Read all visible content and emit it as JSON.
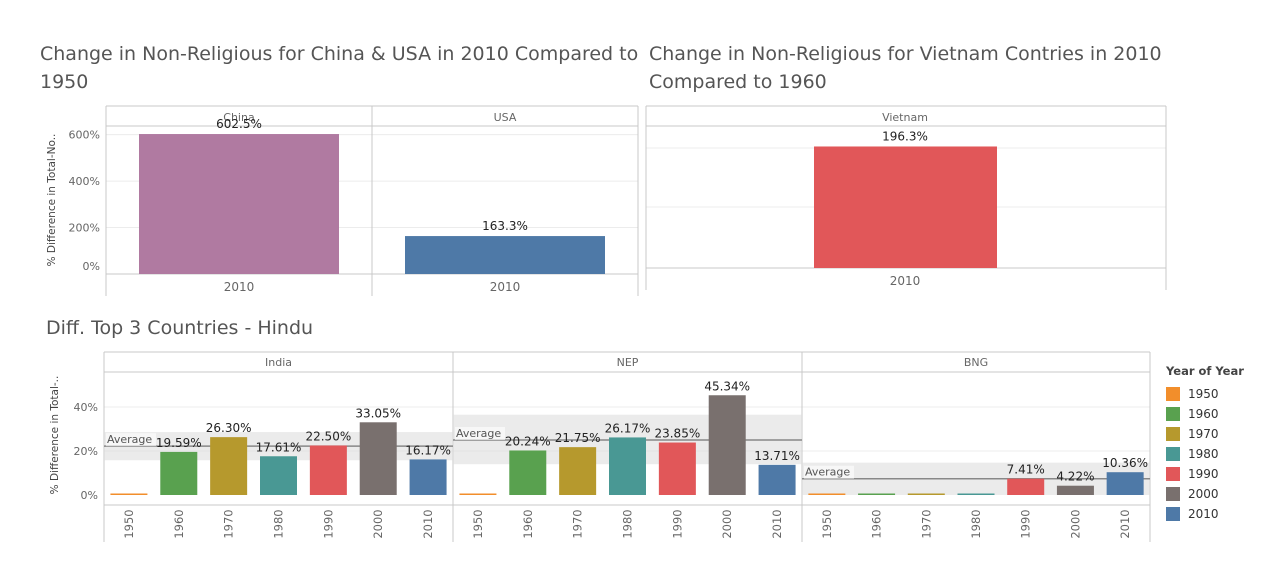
{
  "titles": {
    "china_usa": "Change in Non-Religious for China & USA in 2010 Compared to 1950",
    "vietnam": "Change in Non-Religious for Vietnam Contries in 2010 Compared to 1960",
    "hindu": "Diff. Top 3 Countries - Hindu"
  },
  "legend": {
    "title": "Year of Year",
    "items": [
      {
        "label": "1950",
        "color": "#f28e2b"
      },
      {
        "label": "1960",
        "color": "#59a14f"
      },
      {
        "label": "1970",
        "color": "#b6992d"
      },
      {
        "label": "1980",
        "color": "#499894"
      },
      {
        "label": "1990",
        "color": "#e15759"
      },
      {
        "label": "2000",
        "color": "#79706e"
      },
      {
        "label": "2010",
        "color": "#4e79a7"
      }
    ]
  },
  "chart_data": [
    {
      "type": "bar",
      "title": "Change in Non-Religious for China & USA in 2010 Compared to 1950",
      "ylabel": "% Difference in Total-No..",
      "yticks": [
        "600%",
        "400%",
        "200%",
        "0%"
      ],
      "ylim": [
        0,
        650
      ],
      "grid": true,
      "panels": [
        {
          "name": "China",
          "categories": [
            "2010"
          ],
          "values": [
            602.5
          ],
          "labels": [
            "602.5%"
          ],
          "colors": [
            "#b07aa1"
          ]
        },
        {
          "name": "USA",
          "categories": [
            "2010"
          ],
          "values": [
            163.3
          ],
          "labels": [
            "163.3%"
          ],
          "colors": [
            "#4e79a7"
          ]
        }
      ]
    },
    {
      "type": "bar",
      "title": "Change in Non-Religious for Vietnam Contries in 2010 Compared to 1960",
      "ylim": [
        0,
        210
      ],
      "panels": [
        {
          "name": "Vietnam",
          "categories": [
            "2010"
          ],
          "values": [
            196.3
          ],
          "labels": [
            "196.3%"
          ],
          "colors": [
            "#e15759"
          ]
        }
      ]
    },
    {
      "type": "bar",
      "title": "Diff. Top 3 Countries - Hindu",
      "ylabel": "% Difference in Total-..",
      "yticks": [
        "40%",
        "20%",
        "0%"
      ],
      "ylim": [
        -0.5,
        50
      ],
      "categories": [
        "1950",
        "1960",
        "1970",
        "1980",
        "1990",
        "2000",
        "2010"
      ],
      "reference_label": "Average",
      "legend_title": "Year of Year",
      "legend_position": "right",
      "panels": [
        {
          "name": "India",
          "values": [
            0,
            19.59,
            26.3,
            17.61,
            22.5,
            33.05,
            16.17
          ],
          "labels": [
            "",
            "19.59%",
            "26.30%",
            "17.61%",
            "22.50%",
            "33.05%",
            "16.17%"
          ],
          "average": 22.2,
          "band": [
            15.8,
            28.6
          ]
        },
        {
          "name": "NEP",
          "values": [
            0,
            20.24,
            21.75,
            26.17,
            23.85,
            45.34,
            13.71
          ],
          "labels": [
            "",
            "20.24%",
            "21.75%",
            "26.17%",
            "23.85%",
            "45.34%",
            "13.71%"
          ],
          "average": 25.0,
          "band": [
            14.0,
            36.5
          ]
        },
        {
          "name": "BNG",
          "values": [
            0,
            0,
            0,
            0,
            7.41,
            4.22,
            10.36
          ],
          "labels": [
            "",
            "",
            "",
            "",
            "7.41%",
            "4.22%",
            "10.36%"
          ],
          "average": 7.4,
          "band": [
            0,
            14.7
          ]
        }
      ]
    }
  ]
}
